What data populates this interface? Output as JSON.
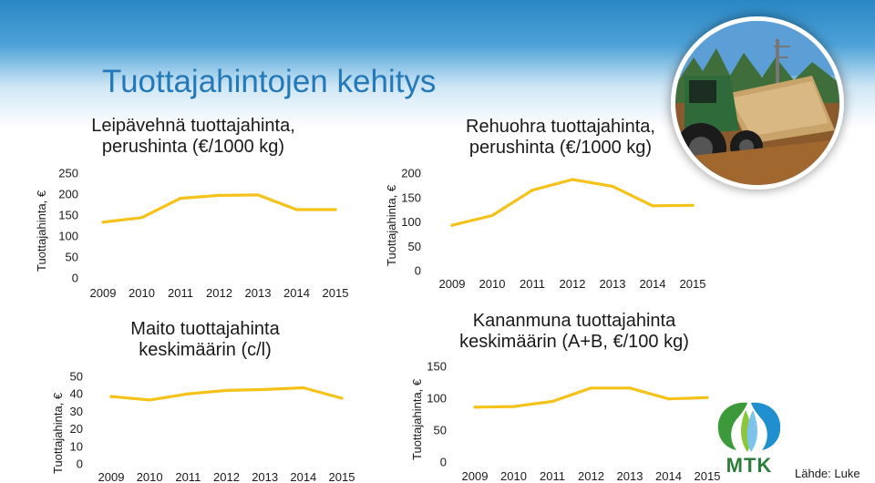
{
  "slide": {
    "title": "Tuottajahintojen kehitys",
    "source": "Lähde: Luke",
    "logo_text": "MTK",
    "line_color": "#f5c21a",
    "title_color": "#2479b8"
  },
  "chart_data": [
    {
      "type": "line",
      "title_lines": [
        "Leipävehnä tuottajahinta,",
        "perushinta (€/1000 kg)"
      ],
      "ylabel": "Tuottajahinta, €",
      "xlabel": "",
      "categories": [
        "2009",
        "2010",
        "2011",
        "2012",
        "2013",
        "2014",
        "2015"
      ],
      "yticks": [
        0,
        50,
        100,
        150,
        200,
        250
      ],
      "ylim": [
        0,
        250
      ],
      "series": [
        {
          "values": [
            133,
            144,
            190,
            197,
            198,
            163,
            163
          ]
        }
      ]
    },
    {
      "type": "line",
      "title_lines": [
        "Rehuohra tuottajahinta,",
        "perushinta (€/1000 kg)"
      ],
      "ylabel": "Tuottajahinta, €",
      "xlabel": "",
      "categories": [
        "2009",
        "2010",
        "2011",
        "2012",
        "2013",
        "2014",
        "2015"
      ],
      "yticks": [
        0,
        50,
        100,
        150,
        200
      ],
      "ylim": [
        0,
        200
      ],
      "series": [
        {
          "values": [
            93,
            113,
            165,
            187,
            173,
            133,
            134
          ]
        }
      ]
    },
    {
      "type": "line",
      "title_lines": [
        "Maito tuottajahinta",
        "keskimäärin (c/l)"
      ],
      "ylabel": "Tuottajahinta, €",
      "xlabel": "",
      "categories": [
        "2009",
        "2010",
        "2011",
        "2012",
        "2013",
        "2014",
        "2015"
      ],
      "yticks": [
        0,
        10,
        20,
        30,
        40,
        50
      ],
      "ylim": [
        0,
        50
      ],
      "series": [
        {
          "values": [
            38.5,
            36.5,
            40,
            42,
            42.5,
            43.5,
            37.5
          ]
        }
      ]
    },
    {
      "type": "line",
      "title_lines": [
        "Kananmuna tuottajahinta",
        "keskimäärin (A+B, €/100 kg)"
      ],
      "ylabel": "Tuottajahinta, €",
      "xlabel": "",
      "categories": [
        "2009",
        "2010",
        "2011",
        "2012",
        "2013",
        "2014",
        "2015"
      ],
      "yticks": [
        0,
        50,
        100,
        150
      ],
      "ylim": [
        0,
        150
      ],
      "series": [
        {
          "values": [
            86,
            87,
            95,
            116,
            116,
            99,
            101
          ]
        }
      ]
    }
  ]
}
